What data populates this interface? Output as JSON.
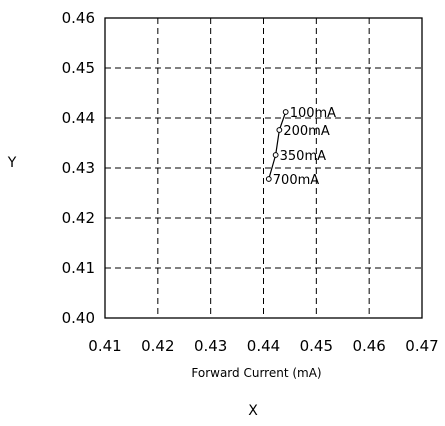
{
  "chart_data": {
    "type": "scatter",
    "title": "",
    "xlabel": "Forward Current (mA)",
    "ylabel": "Y",
    "x_axis_letter": "X",
    "xlim": [
      0.41,
      0.47
    ],
    "ylim": [
      0.4,
      0.46
    ],
    "x_ticks": [
      "0.41",
      "0.42",
      "0.43",
      "0.44",
      "0.45",
      "0.46",
      "0.47"
    ],
    "y_ticks": [
      "0.46",
      "0.45",
      "0.44",
      "0.43",
      "0.42",
      "0.41",
      "0.40"
    ],
    "grid": true,
    "grid_style": "dashed",
    "line_color": "#000000",
    "series": [
      {
        "points": [
          {
            "x": 0.4442,
            "y": 0.4412,
            "label": "100mA"
          },
          {
            "x": 0.443,
            "y": 0.4376,
            "label": "200mA"
          },
          {
            "x": 0.4423,
            "y": 0.4326,
            "label": "350mA"
          },
          {
            "x": 0.441,
            "y": 0.4278,
            "label": "700mA"
          }
        ]
      }
    ]
  }
}
